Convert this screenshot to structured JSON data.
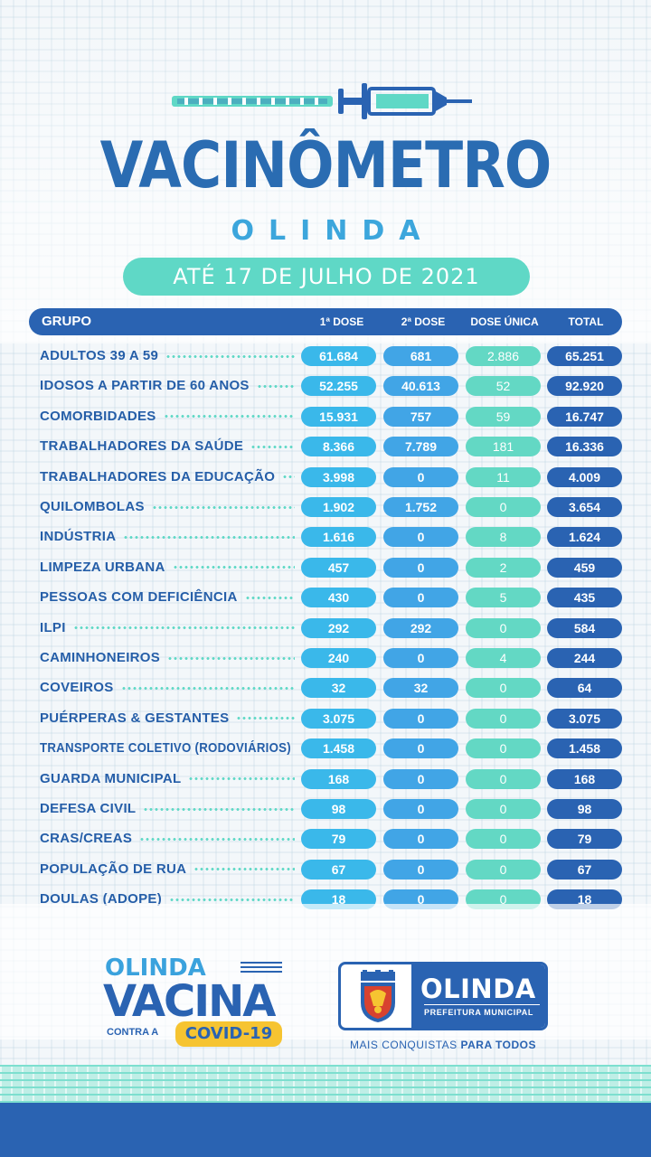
{
  "header": {
    "title": "VACINÔMETRO",
    "subtitle": "OLINDA",
    "date": "ATÉ 17 DE  JULHO DE 2021"
  },
  "table": {
    "headers": {
      "grupo": "GRUPO",
      "dose1": "1ª DOSE",
      "dose2": "2ª DOSE",
      "dose_unica": "DOSE ÚNICA",
      "total": "TOTAL"
    },
    "rows": [
      {
        "grupo": "ADULTOS 39 A 59",
        "dose1": "61.684",
        "dose2": "681",
        "dose_unica": "2.886",
        "total": "65.251"
      },
      {
        "grupo": "IDOSOS A PARTIR DE 60 ANOS",
        "dose1": "52.255",
        "dose2": "40.613",
        "dose_unica": "52",
        "total": "92.920"
      },
      {
        "grupo": "COMORBIDADES",
        "dose1": "15.931",
        "dose2": "757",
        "dose_unica": "59",
        "total": "16.747"
      },
      {
        "grupo": "TRABALHADORES DA SAÚDE",
        "dose1": "8.366",
        "dose2": "7.789",
        "dose_unica": "181",
        "total": "16.336"
      },
      {
        "grupo": "TRABALHADORES DA EDUCAÇÃO",
        "dose1": "3.998",
        "dose2": "0",
        "dose_unica": "11",
        "total": "4.009"
      },
      {
        "grupo": "QUILOMBOLAS",
        "dose1": "1.902",
        "dose2": "1.752",
        "dose_unica": "0",
        "total": "3.654"
      },
      {
        "grupo": "INDÚSTRIA",
        "dose1": "1.616",
        "dose2": "0",
        "dose_unica": "8",
        "total": "1.624"
      },
      {
        "grupo": "LIMPEZA URBANA",
        "dose1": "457",
        "dose2": "0",
        "dose_unica": "2",
        "total": "459"
      },
      {
        "grupo": "PESSOAS COM DEFICIÊNCIA",
        "dose1": "430",
        "dose2": "0",
        "dose_unica": "5",
        "total": "435"
      },
      {
        "grupo": "ILPI",
        "dose1": "292",
        "dose2": "292",
        "dose_unica": "0",
        "total": "584"
      },
      {
        "grupo": "CAMINHONEIROS",
        "dose1": "240",
        "dose2": "0",
        "dose_unica": "4",
        "total": "244"
      },
      {
        "grupo": "COVEIROS",
        "dose1": "32",
        "dose2": "32",
        "dose_unica": "0",
        "total": "64"
      },
      {
        "grupo": "PUÉRPERAS & GESTANTES",
        "dose1": "3.075",
        "dose2": "0",
        "dose_unica": "0",
        "total": "3.075"
      },
      {
        "grupo": "TRANSPORTE COLETIVO (RODOVIÁRIOS)",
        "dose1": "1.458",
        "dose2": "0",
        "dose_unica": "0",
        "total": "1.458"
      },
      {
        "grupo": "GUARDA MUNICIPAL",
        "dose1": "168",
        "dose2": "0",
        "dose_unica": "0",
        "total": "168"
      },
      {
        "grupo": "DEFESA CIVIL",
        "dose1": "98",
        "dose2": "0",
        "dose_unica": "0",
        "total": "98"
      },
      {
        "grupo": "CRAS/CREAS",
        "dose1": "79",
        "dose2": "0",
        "dose_unica": "0",
        "total": "79"
      },
      {
        "grupo": "POPULAÇÃO DE RUA",
        "dose1": "67",
        "dose2": "0",
        "dose_unica": "0",
        "total": "67"
      },
      {
        "grupo": "DOULAS (ADOPE)",
        "dose1": "18",
        "dose2": "0",
        "dose_unica": "0",
        "total": "18"
      }
    ]
  },
  "campaign_logo": {
    "line1": "OLINDA",
    "line2": "VACINA",
    "line3": "CONTRA A",
    "badge": "COVID-19"
  },
  "prefeitura_logo": {
    "name": "OLINDA",
    "sub": "PREFEITURA MUNICIPAL",
    "slogan_normal": "MAIS CONQUISTAS ",
    "slogan_bold": "PARA TODOS"
  },
  "icons": [
    "syringe-icon",
    "coat-of-arms-icon"
  ],
  "colors": {
    "primary_blue": "#2a63b2",
    "light_blue": "#3ab8ea",
    "mid_blue": "#41a5e6",
    "teal": "#63d8c4",
    "yellow": "#f6c431"
  }
}
